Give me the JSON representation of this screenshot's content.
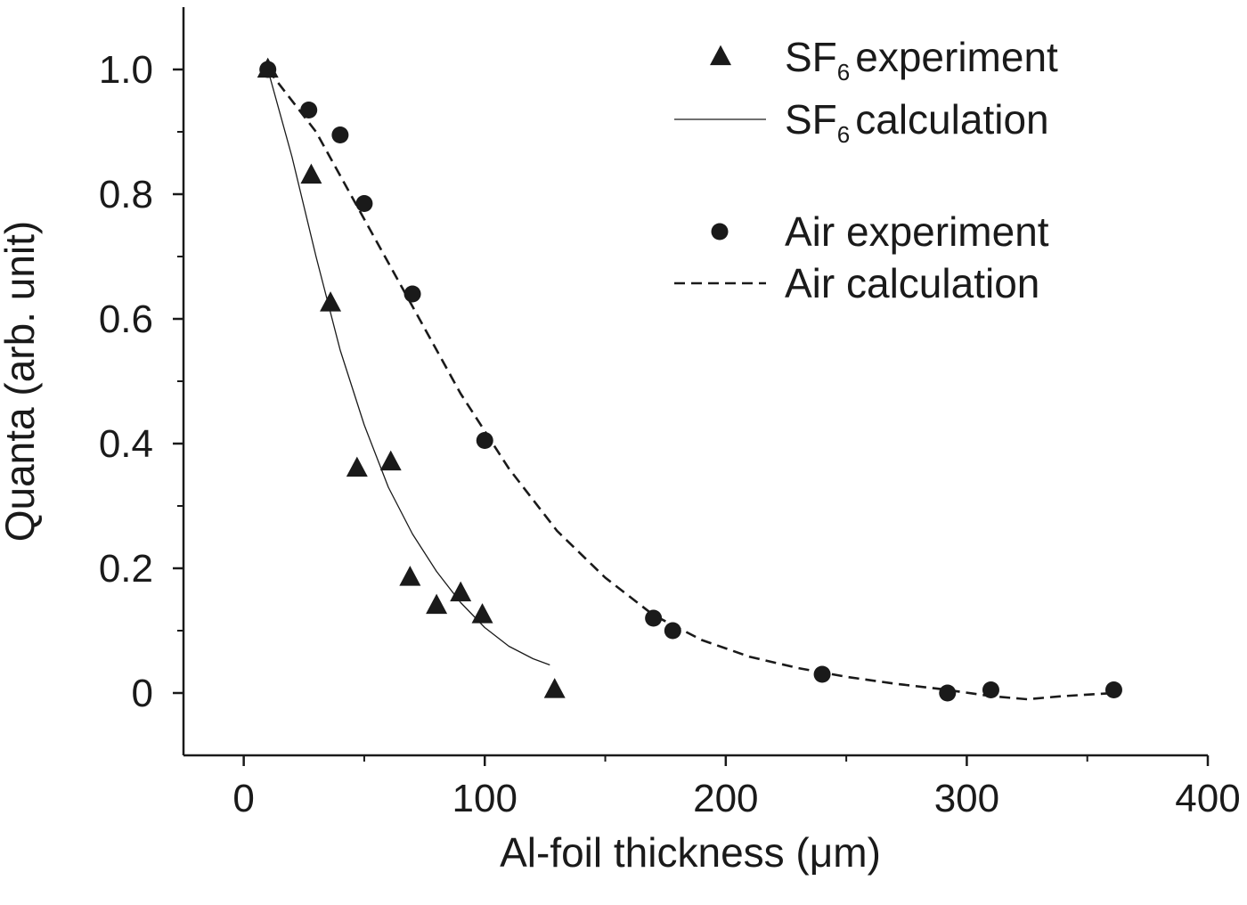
{
  "chart_data": {
    "type": "scatter",
    "title": "",
    "xlabel": "Al-foil thickness (μm)",
    "ylabel": "Quanta (arb. unit)",
    "xlim": [
      -25,
      400
    ],
    "ylim": [
      -0.1,
      1.1
    ],
    "x_ticks": [
      0,
      100,
      200,
      300,
      400
    ],
    "x_tick_labels": [
      "0",
      "100",
      "200",
      "300",
      "400"
    ],
    "y_ticks": [
      0,
      0.2,
      0.4,
      0.6,
      0.8,
      1.0
    ],
    "y_tick_labels": [
      "0",
      "0.2",
      "0.4",
      "0.6",
      "0.8",
      "1.0"
    ],
    "grid": false,
    "legend_position": "top-right",
    "series": [
      {
        "name_main": "SF",
        "name_sub": "6",
        "name_rest": "experiment",
        "kind": "marker",
        "marker": "triangle",
        "color": "#1a1a1a",
        "x": [
          10,
          28,
          36,
          47,
          61,
          69,
          80,
          90,
          99,
          129
        ],
        "y": [
          1.0,
          0.83,
          0.625,
          0.36,
          0.37,
          0.185,
          0.14,
          0.16,
          0.125,
          0.005
        ]
      },
      {
        "name_main": "SF",
        "name_sub": "6",
        "name_rest": "calculation",
        "kind": "line",
        "line_style": "solid",
        "color": "#1a1a1a",
        "x": [
          10,
          20,
          30,
          40,
          50,
          60,
          70,
          80,
          90,
          100,
          110,
          120,
          127
        ],
        "y": [
          1.0,
          0.86,
          0.7,
          0.55,
          0.43,
          0.33,
          0.255,
          0.195,
          0.145,
          0.105,
          0.075,
          0.055,
          0.045
        ]
      },
      {
        "name_main": "Air experiment",
        "kind": "marker",
        "marker": "circle",
        "color": "#1a1a1a",
        "x": [
          10,
          27,
          40,
          50,
          70,
          100,
          170,
          178,
          240,
          292,
          310,
          361
        ],
        "y": [
          1.0,
          0.935,
          0.895,
          0.785,
          0.64,
          0.405,
          0.12,
          0.1,
          0.03,
          0.0,
          0.005,
          0.005
        ]
      },
      {
        "name_main": "Air calculation",
        "kind": "line",
        "line_style": "dashed",
        "color": "#1a1a1a",
        "x": [
          10,
          30,
          50,
          70,
          90,
          110,
          130,
          150,
          170,
          190,
          210,
          230,
          250,
          270,
          290,
          310,
          325,
          340,
          361
        ],
        "y": [
          1.0,
          0.9,
          0.76,
          0.62,
          0.48,
          0.36,
          0.26,
          0.185,
          0.125,
          0.085,
          0.058,
          0.04,
          0.026,
          0.015,
          0.006,
          -0.005,
          -0.01,
          -0.005,
          0.0
        ]
      }
    ]
  }
}
